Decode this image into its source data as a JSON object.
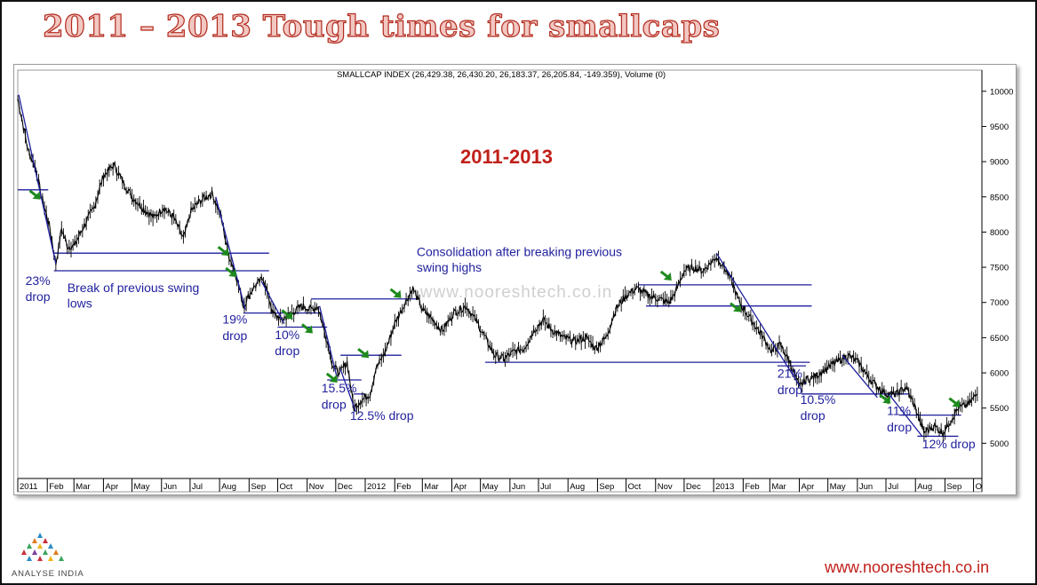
{
  "slide": {
    "title": "2011 – 2013 Tough times for smallcaps",
    "logo_text": "ANALYSE INDIA",
    "website": "www.nooreshtech.co.in"
  },
  "chart_data": {
    "type": "line",
    "title": "SMALLCAP INDEX (26,429.38, 26,430.20, 26,183.37, 26,205.84, -149.359), Volume (0)",
    "subtitle": "2011-2013",
    "watermark": "www.nooreshtech.co.in",
    "x_ticks": [
      "2011",
      "Feb",
      "Mar",
      "Apr",
      "May",
      "Jun",
      "Jul",
      "Aug",
      "Sep",
      "Oct",
      "Nov",
      "Dec",
      "2012",
      "Feb",
      "Mar",
      "Apr",
      "May",
      "Jun",
      "Jul",
      "Aug",
      "Sep",
      "Oct",
      "Nov",
      "Dec",
      "2013",
      "Feb",
      "Mar",
      "Apr",
      "May",
      "Jun",
      "Jul",
      "Aug",
      "Sep",
      "O"
    ],
    "y_ticks": [
      5000,
      5500,
      6000,
      6500,
      7000,
      7500,
      8000,
      8500,
      9000,
      9500,
      10000
    ],
    "ylim": [
      4500,
      10300
    ],
    "grid": false,
    "series": [
      {
        "values": [
          {
            "x": "2011-01-01",
            "y": 9900
          },
          {
            "x": "2011-01-12",
            "y": 9150
          },
          {
            "x": "2011-01-20",
            "y": 8900
          },
          {
            "x": "2011-01-26",
            "y": 8500
          },
          {
            "x": "2011-02-03",
            "y": 8100
          },
          {
            "x": "2011-02-10",
            "y": 7550
          },
          {
            "x": "2011-02-16",
            "y": 8050
          },
          {
            "x": "2011-02-22",
            "y": 7800
          },
          {
            "x": "2011-03-01",
            "y": 7800
          },
          {
            "x": "2011-03-12",
            "y": 8100
          },
          {
            "x": "2011-03-22",
            "y": 8350
          },
          {
            "x": "2011-04-01",
            "y": 8800
          },
          {
            "x": "2011-04-12",
            "y": 8950
          },
          {
            "x": "2011-04-22",
            "y": 8700
          },
          {
            "x": "2011-05-01",
            "y": 8500
          },
          {
            "x": "2011-05-12",
            "y": 8350
          },
          {
            "x": "2011-05-24",
            "y": 8200
          },
          {
            "x": "2011-06-03",
            "y": 8350
          },
          {
            "x": "2011-06-14",
            "y": 8200
          },
          {
            "x": "2011-06-24",
            "y": 7900
          },
          {
            "x": "2011-07-02",
            "y": 8300
          },
          {
            "x": "2011-07-12",
            "y": 8450
          },
          {
            "x": "2011-07-24",
            "y": 8550
          },
          {
            "x": "2011-08-02",
            "y": 8250
          },
          {
            "x": "2011-08-10",
            "y": 7700
          },
          {
            "x": "2011-08-18",
            "y": 7400
          },
          {
            "x": "2011-08-26",
            "y": 6950
          },
          {
            "x": "2011-09-05",
            "y": 7200
          },
          {
            "x": "2011-09-16",
            "y": 7350
          },
          {
            "x": "2011-09-26",
            "y": 6850
          },
          {
            "x": "2011-10-05",
            "y": 6750
          },
          {
            "x": "2011-10-16",
            "y": 6850
          },
          {
            "x": "2011-10-27",
            "y": 6950
          },
          {
            "x": "2011-11-05",
            "y": 6900
          },
          {
            "x": "2011-11-12",
            "y": 6950
          },
          {
            "x": "2011-11-21",
            "y": 6500
          },
          {
            "x": "2011-11-28",
            "y": 6100
          },
          {
            "x": "2011-12-05",
            "y": 6000
          },
          {
            "x": "2011-12-13",
            "y": 6150
          },
          {
            "x": "2011-12-20",
            "y": 5500
          },
          {
            "x": "2011-12-27",
            "y": 5600
          },
          {
            "x": "2012-01-06",
            "y": 5700
          },
          {
            "x": "2012-01-12",
            "y": 6050
          },
          {
            "x": "2012-01-22",
            "y": 6300
          },
          {
            "x": "2012-02-01",
            "y": 6700
          },
          {
            "x": "2012-02-12",
            "y": 7000
          },
          {
            "x": "2012-02-20",
            "y": 7200
          },
          {
            "x": "2012-03-01",
            "y": 6900
          },
          {
            "x": "2012-03-12",
            "y": 6750
          },
          {
            "x": "2012-03-22",
            "y": 6600
          },
          {
            "x": "2012-04-03",
            "y": 6850
          },
          {
            "x": "2012-04-16",
            "y": 6950
          },
          {
            "x": "2012-04-26",
            "y": 6750
          },
          {
            "x": "2012-05-06",
            "y": 6500
          },
          {
            "x": "2012-05-16",
            "y": 6250
          },
          {
            "x": "2012-05-26",
            "y": 6200
          },
          {
            "x": "2012-06-05",
            "y": 6300
          },
          {
            "x": "2012-06-16",
            "y": 6350
          },
          {
            "x": "2012-06-26",
            "y": 6600
          },
          {
            "x": "2012-07-06",
            "y": 6750
          },
          {
            "x": "2012-07-16",
            "y": 6600
          },
          {
            "x": "2012-07-27",
            "y": 6500
          },
          {
            "x": "2012-08-08",
            "y": 6450
          },
          {
            "x": "2012-08-20",
            "y": 6500
          },
          {
            "x": "2012-08-30",
            "y": 6350
          },
          {
            "x": "2012-09-10",
            "y": 6500
          },
          {
            "x": "2012-09-20",
            "y": 6900
          },
          {
            "x": "2012-10-01",
            "y": 7100
          },
          {
            "x": "2012-10-12",
            "y": 7200
          },
          {
            "x": "2012-10-24",
            "y": 7100
          },
          {
            "x": "2012-11-05",
            "y": 7050
          },
          {
            "x": "2012-11-15",
            "y": 7000
          },
          {
            "x": "2012-11-22",
            "y": 7150
          },
          {
            "x": "2012-12-01",
            "y": 7450
          },
          {
            "x": "2012-12-11",
            "y": 7500
          },
          {
            "x": "2012-12-21",
            "y": 7450
          },
          {
            "x": "2013-01-04",
            "y": 7650
          },
          {
            "x": "2013-01-12",
            "y": 7500
          },
          {
            "x": "2013-01-20",
            "y": 7300
          },
          {
            "x": "2013-01-28",
            "y": 7000
          },
          {
            "x": "2013-02-07",
            "y": 6800
          },
          {
            "x": "2013-02-20",
            "y": 6550
          },
          {
            "x": "2013-03-03",
            "y": 6300
          },
          {
            "x": "2013-03-12",
            "y": 6400
          },
          {
            "x": "2013-03-22",
            "y": 6150
          },
          {
            "x": "2013-04-01",
            "y": 5800
          },
          {
            "x": "2013-04-08",
            "y": 5900
          },
          {
            "x": "2013-04-18",
            "y": 5950
          },
          {
            "x": "2013-04-28",
            "y": 6050
          },
          {
            "x": "2013-05-10",
            "y": 6150
          },
          {
            "x": "2013-05-22",
            "y": 6250
          },
          {
            "x": "2013-06-02",
            "y": 6150
          },
          {
            "x": "2013-06-12",
            "y": 5950
          },
          {
            "x": "2013-06-22",
            "y": 5800
          },
          {
            "x": "2013-07-02",
            "y": 5700
          },
          {
            "x": "2013-07-12",
            "y": 5700
          },
          {
            "x": "2013-07-22",
            "y": 5800
          },
          {
            "x": "2013-08-01",
            "y": 5500
          },
          {
            "x": "2013-08-10",
            "y": 5150
          },
          {
            "x": "2013-08-20",
            "y": 5250
          },
          {
            "x": "2013-08-30",
            "y": 5150
          },
          {
            "x": "2013-09-08",
            "y": 5350
          },
          {
            "x": "2013-09-15",
            "y": 5500
          },
          {
            "x": "2013-09-25",
            "y": 5550
          },
          {
            "x": "2013-10-05",
            "y": 5700
          }
        ]
      }
    ],
    "support_lines": [
      {
        "y": 8600,
        "x_start": "2011-01-01",
        "x_end": "2011-02-02"
      },
      {
        "y": 7700,
        "x_start": "2011-02-08",
        "x_end": "2011-09-22"
      },
      {
        "y": 7450,
        "x_start": "2011-02-08",
        "x_end": "2011-09-22"
      },
      {
        "y": 6850,
        "x_start": "2011-08-26",
        "x_end": "2011-11-14"
      },
      {
        "y": 6650,
        "x_start": "2011-10-01",
        "x_end": "2011-11-22"
      },
      {
        "y": 7050,
        "x_start": "2011-11-05",
        "x_end": "2012-02-27"
      },
      {
        "y": 5900,
        "x_start": "2011-11-22",
        "x_end": "2011-12-28"
      },
      {
        "y": 6250,
        "x_start": "2011-12-06",
        "x_end": "2012-02-08"
      },
      {
        "y": 5700,
        "x_start": "2011-12-20",
        "x_end": "2012-01-01"
      },
      {
        "y": 6150,
        "x_start": "2012-05-06",
        "x_end": "2013-04-12"
      },
      {
        "y": 7250,
        "x_start": "2012-10-14",
        "x_end": "2013-04-14"
      },
      {
        "y": 6950,
        "x_start": "2012-10-22",
        "x_end": "2013-04-14"
      },
      {
        "y": 6100,
        "x_start": "2013-03-09",
        "x_end": "2013-04-08"
      },
      {
        "y": 5700,
        "x_start": "2013-04-03",
        "x_end": "2013-07-25"
      },
      {
        "y": 5400,
        "x_start": "2013-07-15",
        "x_end": "2013-09-18"
      },
      {
        "y": 5100,
        "x_start": "2013-08-03",
        "x_end": "2013-09-15"
      }
    ],
    "trend_lines": [
      {
        "from": {
          "x": "2011-01-02",
          "y": 9950
        },
        "to": {
          "x": "2011-02-10",
          "y": 7550
        }
      },
      {
        "from": {
          "x": "2011-07-28",
          "y": 8500
        },
        "to": {
          "x": "2011-08-28",
          "y": 6900
        }
      },
      {
        "from": {
          "x": "2011-09-14",
          "y": 7300
        },
        "to": {
          "x": "2011-10-08",
          "y": 6700
        }
      },
      {
        "from": {
          "x": "2011-11-14",
          "y": 6950
        },
        "to": {
          "x": "2011-12-02",
          "y": 5950
        }
      },
      {
        "from": {
          "x": "2011-12-06",
          "y": 6050
        },
        "to": {
          "x": "2011-12-22",
          "y": 5450
        }
      },
      {
        "from": {
          "x": "2013-01-04",
          "y": 7700
        },
        "to": {
          "x": "2013-04-02",
          "y": 5800
        }
      },
      {
        "from": {
          "x": "2013-04-06",
          "y": 5850
        },
        "to": {
          "x": "2013-04-08",
          "y": 5850
        }
      },
      {
        "from": {
          "x": "2013-05-16",
          "y": 6250
        },
        "to": {
          "x": "2013-06-22",
          "y": 5650
        }
      },
      {
        "from": {
          "x": "2013-07-04",
          "y": 5700
        },
        "to": {
          "x": "2013-08-08",
          "y": 5100
        }
      }
    ],
    "arrow_points": [
      {
        "x": "2011-01-22",
        "y": 8500
      },
      {
        "x": "2011-08-08",
        "y": 7700
      },
      {
        "x": "2011-08-16",
        "y": 7400
      },
      {
        "x": "2011-10-14",
        "y": 6800
      },
      {
        "x": "2011-11-04",
        "y": 6600
      },
      {
        "x": "2011-11-30",
        "y": 5900
      },
      {
        "x": "2012-01-02",
        "y": 6250
      },
      {
        "x": "2012-02-05",
        "y": 7100
      },
      {
        "x": "2012-11-15",
        "y": 7350
      },
      {
        "x": "2013-01-27",
        "y": 6900
      },
      {
        "x": "2013-07-03",
        "y": 5600
      },
      {
        "x": "2013-09-14",
        "y": 5550
      }
    ],
    "annotations": [
      {
        "text": "23%",
        "x": "2011-01-09",
        "y": 7250
      },
      {
        "text": "drop",
        "x": "2011-01-09",
        "y": 7020
      },
      {
        "text": "Break of previous swing",
        "x": "2011-02-22",
        "y": 7150
      },
      {
        "text": "lows",
        "x": "2011-02-22",
        "y": 6930
      },
      {
        "text": "19%",
        "x": "2011-08-04",
        "y": 6700
      },
      {
        "text": "drop",
        "x": "2011-08-04",
        "y": 6470
      },
      {
        "text": "10%",
        "x": "2011-09-28",
        "y": 6480
      },
      {
        "text": "drop",
        "x": "2011-09-28",
        "y": 6250
      },
      {
        "text": "15.5%",
        "x": "2011-11-16",
        "y": 5720
      },
      {
        "text": "drop",
        "x": "2011-11-16",
        "y": 5490
      },
      {
        "text": "12.5% drop",
        "x": "2011-12-16",
        "y": 5330
      },
      {
        "text": "Consolidation after breaking previous",
        "x": "2012-02-24",
        "y": 7660
      },
      {
        "text": "swing highs",
        "x": "2012-02-24",
        "y": 7440
      },
      {
        "text": "21%",
        "x": "2013-03-09",
        "y": 5930
      },
      {
        "text": "drop",
        "x": "2013-03-09",
        "y": 5700
      },
      {
        "text": "10.5%",
        "x": "2013-04-02",
        "y": 5560
      },
      {
        "text": "drop",
        "x": "2013-04-02",
        "y": 5330
      },
      {
        "text": "11%",
        "x": "2013-07-02",
        "y": 5400
      },
      {
        "text": "drop",
        "x": "2013-07-02",
        "y": 5170
      },
      {
        "text": "12% drop",
        "x": "2013-08-08",
        "y": 4930
      }
    ],
    "colors": {
      "price": "#000000",
      "lines": "#1f1f9e",
      "annotation": "#1f1f9e",
      "arrow": "#1e8a1e",
      "subtitle": "#c0201a"
    }
  }
}
